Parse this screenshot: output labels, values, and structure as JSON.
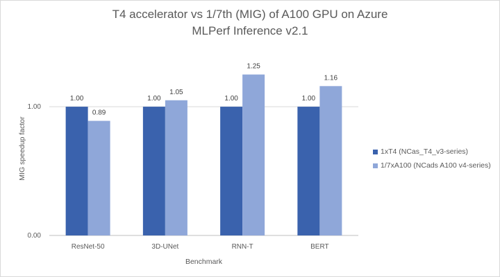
{
  "chart_data": {
    "type": "bar",
    "title": "T4 accelerator vs 1/7th (MIG) of A100 GPU on Azure",
    "subtitle": "MLPerf Inference v2.1",
    "xlabel": "Benchmark",
    "ylabel": "MIG speedup factor",
    "categories": [
      "ResNet-50",
      "3D-UNet",
      "RNN-T",
      "BERT"
    ],
    "series": [
      {
        "name": "1xT4 (NCas_T4_v3-series)",
        "color": "#3a62ad",
        "values": [
          1.0,
          1.0,
          1.0,
          1.0
        ]
      },
      {
        "name": "1/7xA100 (NCads A100 v4-series)",
        "color": "#8fa7d9",
        "values": [
          0.89,
          1.05,
          1.25,
          1.16
        ]
      }
    ],
    "ylim": [
      0,
      1.35
    ],
    "yticks": [
      0.0,
      1.0
    ],
    "ytick_labels": [
      "0.00",
      "1.00"
    ],
    "data_labels": true,
    "grid": true,
    "legend": "right"
  }
}
